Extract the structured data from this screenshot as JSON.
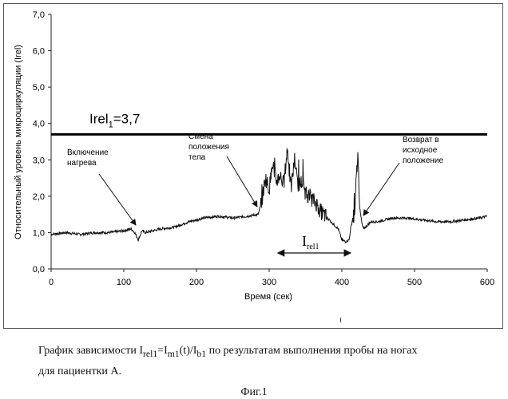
{
  "chart_data": {
    "type": "line",
    "ylabel": "Относительный уровень микроциркуляции (Irel)",
    "xlabel": "Время (сек)",
    "xlim": [
      0,
      600
    ],
    "ylim": [
      0,
      7
    ],
    "x_ticks": [
      0,
      100,
      200,
      300,
      400,
      500,
      600
    ],
    "x_tick_labels": [
      "0",
      "100",
      "200",
      "300",
      "400",
      "500",
      "600"
    ],
    "y_ticks": [
      0,
      1,
      2,
      3,
      4,
      5,
      6,
      7
    ],
    "y_tick_labels": [
      "0,0",
      "1,0",
      "2,0",
      "3,0",
      "4,0",
      "5,0",
      "6,0",
      "7,0"
    ],
    "grid": false,
    "threshold": {
      "value": 3.7,
      "label_main": "Irel",
      "label_sub": "1",
      "label_value": "=3,7"
    },
    "series": [
      {
        "values_x": [
          0,
          20,
          40,
          60,
          80,
          100,
          110,
          115,
          120,
          125,
          130,
          150,
          170,
          190,
          210,
          230,
          250,
          270,
          285,
          290,
          295,
          300,
          305,
          310,
          315,
          320,
          325,
          330,
          335,
          340,
          345,
          350,
          355,
          360,
          365,
          370,
          375,
          380,
          385,
          390,
          395,
          400,
          405,
          410,
          412,
          415,
          418,
          420,
          422,
          425,
          428,
          430,
          435,
          440,
          450,
          470,
          490,
          510,
          530,
          550,
          570,
          590,
          600
        ],
        "values_y": [
          0.95,
          1.0,
          0.95,
          1.0,
          1.0,
          1.05,
          1.1,
          1.0,
          0.8,
          1.05,
          1.0,
          1.1,
          1.15,
          1.3,
          1.4,
          1.45,
          1.4,
          1.45,
          1.5,
          1.9,
          2.5,
          2.2,
          2.9,
          2.4,
          2.6,
          2.3,
          3.3,
          2.2,
          3.0,
          2.3,
          2.4,
          2.1,
          2.0,
          1.9,
          1.8,
          1.6,
          1.5,
          1.4,
          1.3,
          1.2,
          1.1,
          0.8,
          0.75,
          0.8,
          1.1,
          1.4,
          1.5,
          2.6,
          3.1,
          1.6,
          1.2,
          1.1,
          1.2,
          1.3,
          1.3,
          1.4,
          1.4,
          1.35,
          1.3,
          1.3,
          1.35,
          1.4,
          1.45
        ]
      }
    ],
    "annotations": [
      {
        "id": "heating",
        "lines": [
          "Включение",
          "нагрева"
        ]
      },
      {
        "id": "position-change",
        "lines": [
          "Смена",
          "положения",
          "тела"
        ]
      },
      {
        "id": "return",
        "lines": [
          "Возврат в",
          "исходное",
          "положение"
        ]
      }
    ],
    "interval": {
      "from": 312,
      "to": 412,
      "label_main": "I",
      "label_sub": "rel1"
    }
  },
  "caption": {
    "line1_parts": [
      "График зависимости I",
      "rel1",
      "=I",
      "m1",
      "(t)/I",
      "b1",
      " по результатам выполнения пробы на ногах"
    ],
    "line2": "для пациентки А.",
    "figure": "Фиг.1"
  }
}
